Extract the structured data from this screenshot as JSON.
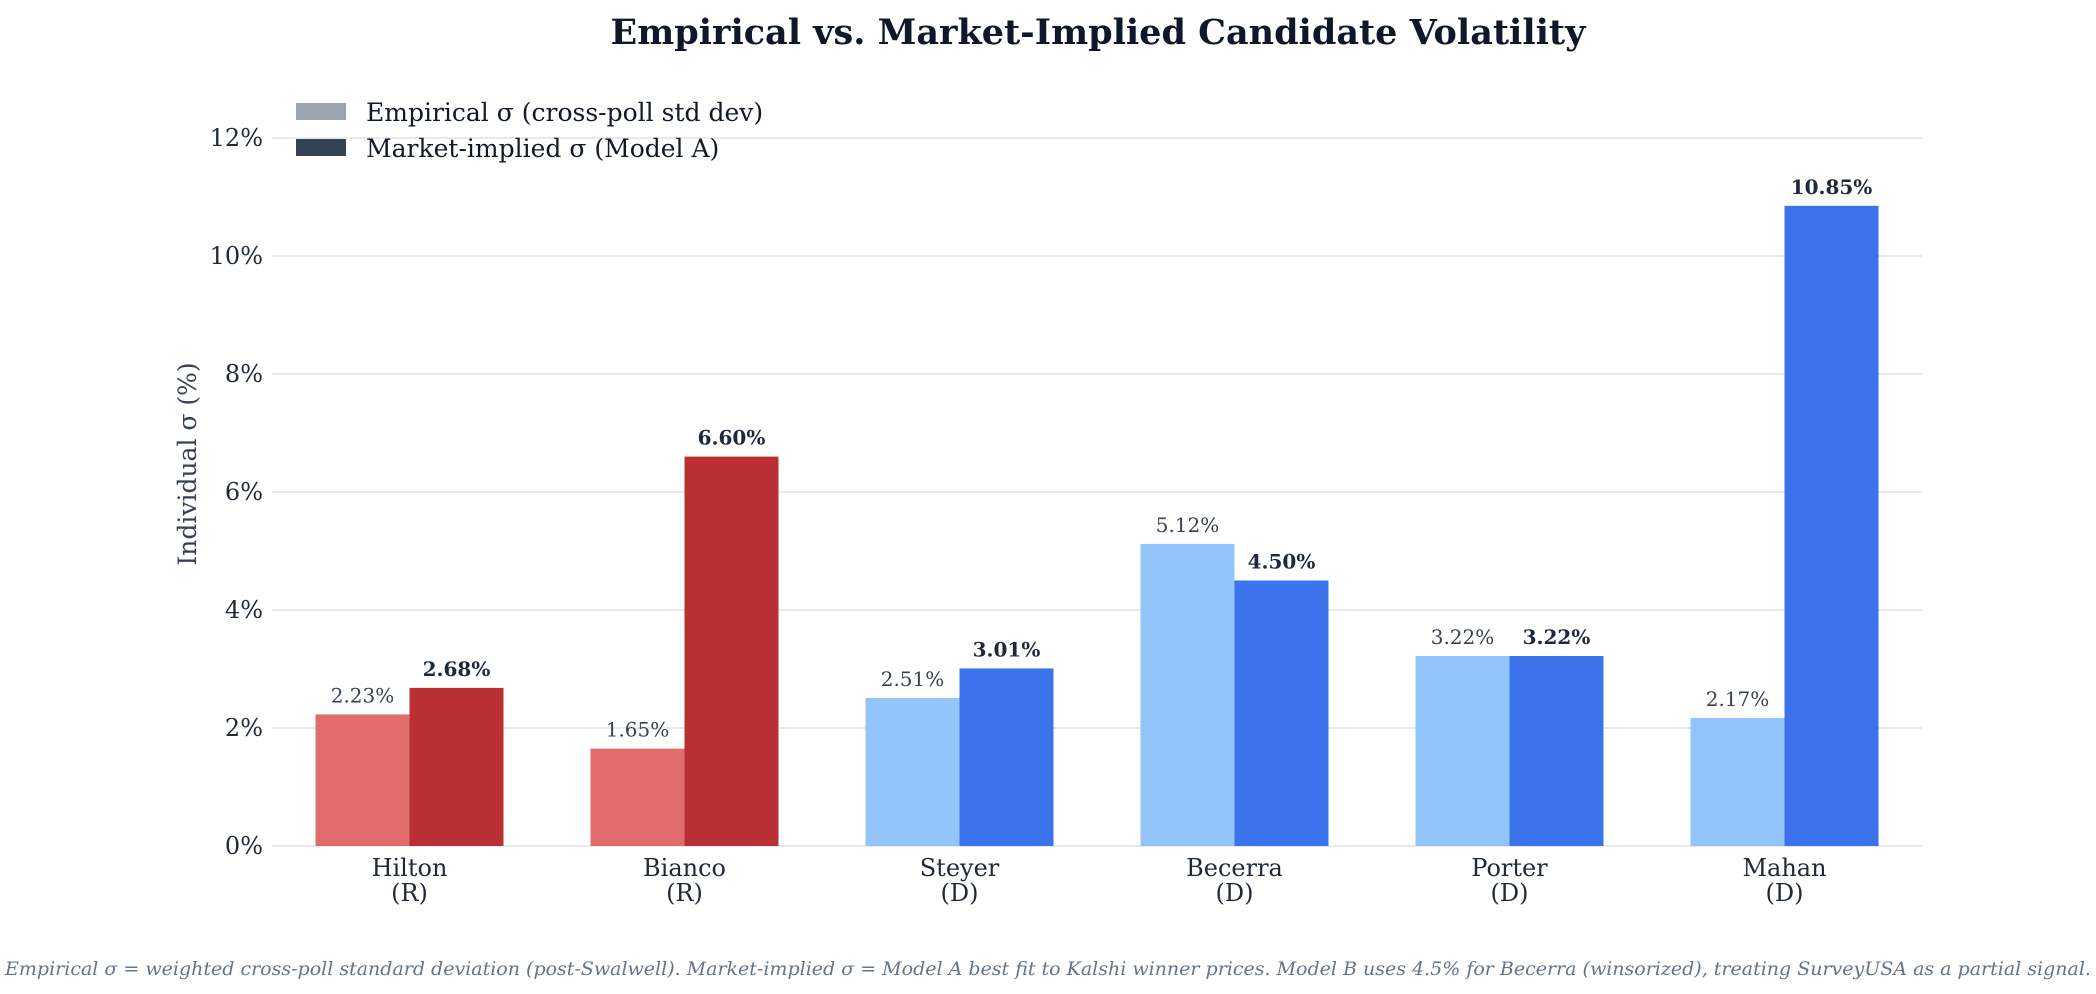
{
  "chart_data": {
    "type": "bar",
    "title": "Empirical vs. Market-Implied Candidate Volatility",
    "ylabel": "Individual σ (%)",
    "xlabel": "",
    "ylim": [
      0,
      12
    ],
    "yticks": [
      0,
      2,
      4,
      6,
      8,
      10,
      12
    ],
    "ytick_suffix": "%",
    "grid": "horizontal",
    "legend_position": "top-left",
    "categories": [
      {
        "name": "Hilton",
        "party": "(R)"
      },
      {
        "name": "Bianco",
        "party": "(R)"
      },
      {
        "name": "Steyer",
        "party": "(D)"
      },
      {
        "name": "Becerra",
        "party": "(D)"
      },
      {
        "name": "Porter",
        "party": "(D)"
      },
      {
        "name": "Mahan",
        "party": "(D)"
      }
    ],
    "series": [
      {
        "name": "Empirical σ (cross-poll std dev)",
        "values": [
          2.23,
          1.65,
          2.51,
          5.12,
          3.22,
          2.17
        ],
        "labels": [
          "2.23%",
          "1.65%",
          "2.51%",
          "5.12%",
          "3.22%",
          "2.17%"
        ],
        "legend_color": "#9ca3af"
      },
      {
        "name": "Market-implied σ (Model A)",
        "values": [
          2.68,
          6.6,
          3.01,
          4.5,
          3.22,
          10.85
        ],
        "labels": [
          "2.68%",
          "6.60%",
          "3.01%",
          "4.50%",
          "3.22%",
          "10.85%"
        ],
        "legend_color": "#334155"
      }
    ],
    "party_colors": {
      "R": {
        "empirical": "#e06c6c",
        "market": "#b92f33"
      },
      "D": {
        "empirical": "#93c5fb",
        "market": "#3b73ec"
      }
    },
    "footnote": "Empirical σ = weighted cross-poll standard deviation (post-Swalwell). Market-implied σ = Model A best fit to Kalshi winner prices. Model B uses 4.5% for Becerra (winsorized), treating SurveyUSA as a partial signal."
  }
}
